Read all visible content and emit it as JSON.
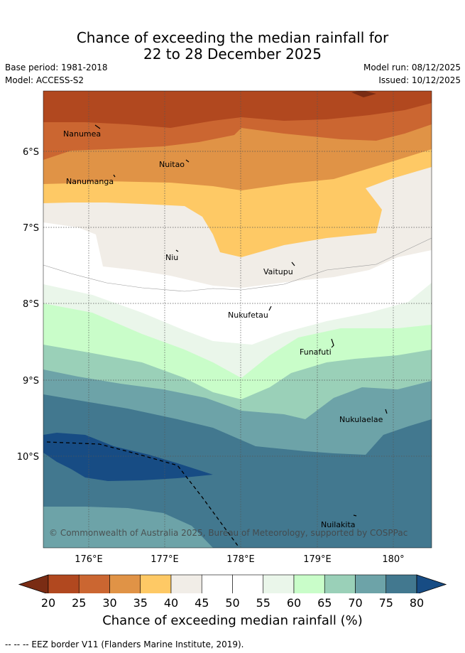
{
  "title_line1": "Chance of exceeding the median rainfall for",
  "title_line2": "22 to 28 December 2025",
  "base_period": "Base period: 1981-2018",
  "model": "Model: ACCESS-S2",
  "model_run": "Model run: 08/12/2025",
  "issued": "Issued: 10/12/2025",
  "map": {
    "lat_labels": [
      "6°S",
      "7°S",
      "8°S",
      "9°S",
      "10°S"
    ],
    "lon_labels": [
      "176°E",
      "177°E",
      "178°E",
      "179°E",
      "180°"
    ],
    "places": [
      {
        "name": "Nanumea"
      },
      {
        "name": "Nuitao"
      },
      {
        "name": "Nanumanga"
      },
      {
        "name": "Niu"
      },
      {
        "name": "Vaitupu"
      },
      {
        "name": "Nukufetau"
      },
      {
        "name": "Funafuti"
      },
      {
        "name": "Nukulaelae"
      },
      {
        "name": "Nuilakita"
      }
    ],
    "copyright": "© Commonwealth of Australia 2025, Bureau of Meteorology, supported by COSPPac"
  },
  "colorbar": {
    "ticks": [
      "20",
      "25",
      "30",
      "35",
      "40",
      "45",
      "50",
      "55",
      "60",
      "65",
      "70",
      "75",
      "80"
    ],
    "colors": [
      "#7a2c14",
      "#b1481f",
      "#cb6631",
      "#e09346",
      "#fec965",
      "#f1ede7",
      "#ffffff",
      "#ffffff",
      "#eaf6ea",
      "#c9fdc9",
      "#9ad0b8",
      "#6da3a8",
      "#42788f",
      "#174c84"
    ],
    "label": "Chance of exceeding median rainfall (%)"
  },
  "footer": "-- -- -- EEZ border V11 (Flanders Marine Institute, 2019)."
}
